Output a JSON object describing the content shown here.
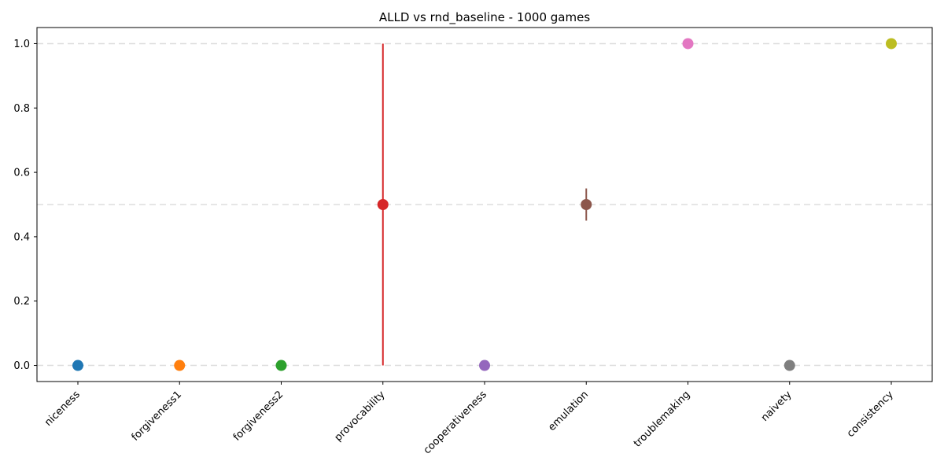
{
  "chart_data": {
    "type": "scatter",
    "title": "ALLD vs rnd_baseline - 1000 games",
    "xlabel": "",
    "ylabel": "",
    "categories": [
      "niceness",
      "forgiveness1",
      "forgiveness2",
      "provocability",
      "cooperativeness",
      "emulation",
      "troublemaking",
      "naivety",
      "consistency"
    ],
    "values": [
      0.0,
      0.0,
      0.0,
      0.5,
      0.0,
      0.5,
      1.0,
      0.0,
      1.0
    ],
    "error_low": [
      0.0,
      0.0,
      0.0,
      0.0,
      0.0,
      0.45,
      1.0,
      0.0,
      1.0
    ],
    "error_high": [
      0.0,
      0.0,
      0.0,
      1.0,
      0.0,
      0.55,
      1.0,
      0.0,
      1.0
    ],
    "colors": [
      "#1f77b4",
      "#ff7f0e",
      "#2ca02c",
      "#d62728",
      "#9467bd",
      "#8c564b",
      "#e377c2",
      "#7f7f7f",
      "#bcbd22"
    ],
    "ylim": [
      -0.05,
      1.05
    ],
    "yticks": [
      "0.0",
      "0.2",
      "0.4",
      "0.6",
      "0.8",
      "1.0"
    ],
    "ytick_values": [
      0.0,
      0.2,
      0.4,
      0.6,
      0.8,
      1.0
    ],
    "gridlines_y": [
      0.0,
      0.5,
      1.0
    ],
    "grid": "dashed horizontal",
    "legend": "none"
  }
}
